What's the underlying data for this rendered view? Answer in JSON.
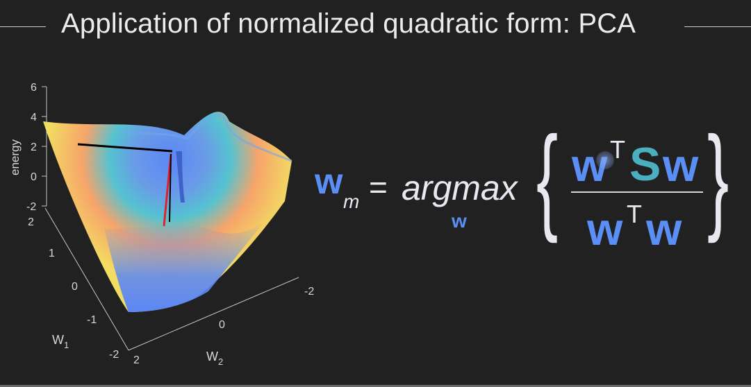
{
  "title": "Application of normalized quadratic form: PCA",
  "plot": {
    "z_label": "energy",
    "z_ticks": [
      "6",
      "4",
      "2",
      "0",
      "-2"
    ],
    "w1_label": "W",
    "w1_sub": "1",
    "w1_ticks": [
      "2",
      "1",
      "0",
      "-1",
      "-2"
    ],
    "w2_label": "W",
    "w2_sub": "2",
    "w2_ticks": [
      "2",
      "0",
      "-2"
    ]
  },
  "equation": {
    "lhs_w": "w",
    "lhs_sub": "m",
    "equals": "=",
    "argmax": "argmax",
    "argmax_sub": "w",
    "num_w1": "w",
    "num_T": "T",
    "num_S": "S",
    "num_w2": "w",
    "den_w1": "w",
    "den_T": "T",
    "den_w2": "w",
    "left_brace": "{",
    "right_brace": "}"
  },
  "colors": {
    "background": "#212121",
    "w_blue": "#5b8ff5",
    "s_teal": "#4ab0c0",
    "surface_yellow": "#f2dc62",
    "surface_orange": "#f7a46a",
    "surface_blue": "#5b87f5",
    "vector_red": "#e0202a",
    "vector_black": "#000000"
  }
}
